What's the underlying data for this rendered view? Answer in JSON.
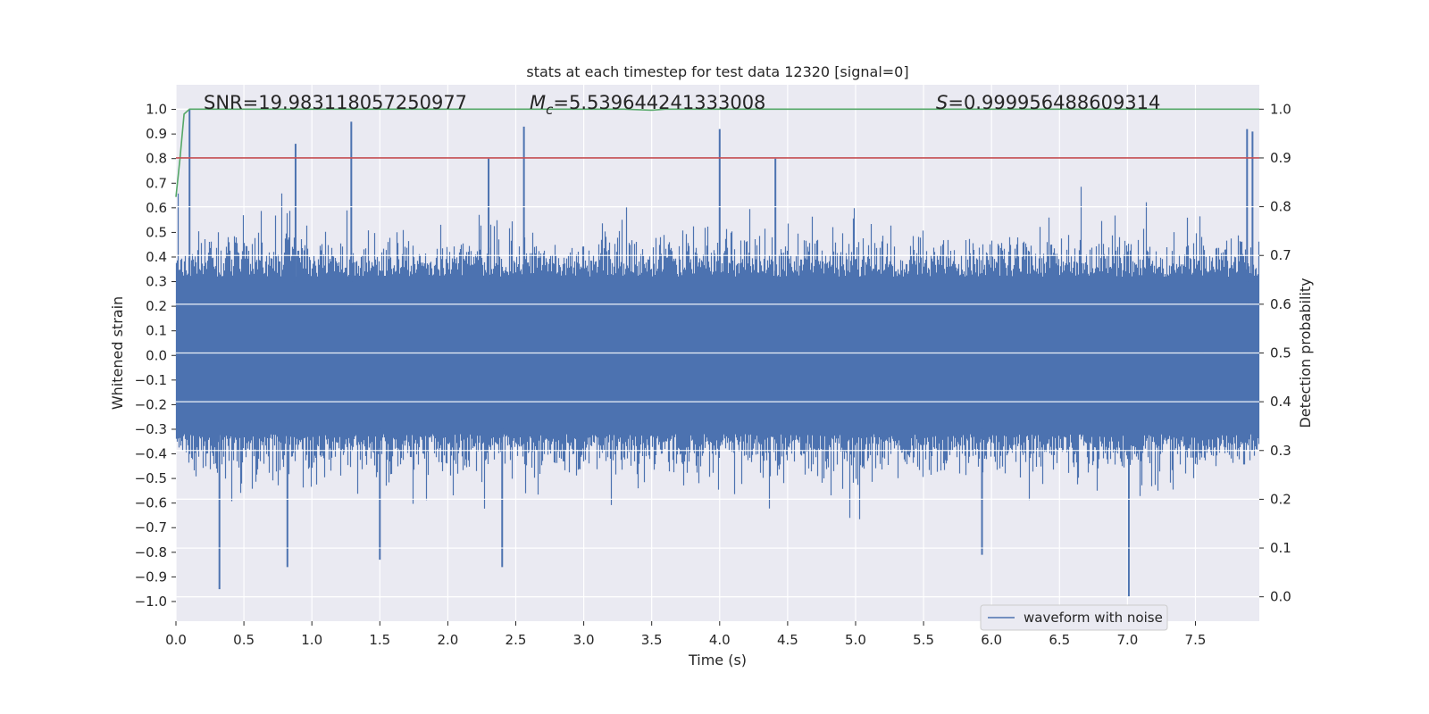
{
  "chart_data": {
    "type": "line",
    "title": "stats at each timestep for test data 12320 [signal=0]",
    "xlabel": "Time (s)",
    "ylabel": "Whitened strain",
    "ylabel_right": "Detection probability",
    "xlim": [
      0.0,
      7.97
    ],
    "ylim": [
      -1.08,
      1.1
    ],
    "ylim_right": [
      -0.05,
      1.05
    ],
    "xticks": [
      0.0,
      0.5,
      1.0,
      1.5,
      2.0,
      2.5,
      3.0,
      3.5,
      4.0,
      4.5,
      5.0,
      5.5,
      6.0,
      6.5,
      7.0,
      7.5
    ],
    "xtick_labels": [
      "0.0",
      "0.5",
      "1.0",
      "1.5",
      "2.0",
      "2.5",
      "3.0",
      "3.5",
      "4.0",
      "4.5",
      "5.0",
      "5.5",
      "6.0",
      "6.5",
      "7.0",
      "7.5"
    ],
    "yticks": [
      1.0,
      0.9,
      0.8,
      0.7,
      0.6,
      0.5,
      0.4,
      0.3,
      0.2,
      0.1,
      0.0,
      -0.1,
      -0.2,
      -0.3,
      -0.4,
      -0.5,
      -0.6,
      -0.7,
      -0.8,
      -0.9,
      -1.0
    ],
    "ytick_labels": [
      "1.0",
      "0.9",
      "0.8",
      "0.7",
      "0.6",
      "0.5",
      "0.4",
      "0.3",
      "0.2",
      "0.1",
      "0.0",
      "−0.1",
      "−0.2",
      "−0.3",
      "−0.4",
      "−0.5",
      "−0.6",
      "−0.7",
      "−0.8",
      "−0.9",
      "−1.0"
    ],
    "yticks_right": [
      1.0,
      0.9,
      0.8,
      0.7,
      0.6,
      0.5,
      0.4,
      0.3,
      0.2,
      0.1,
      0.0
    ],
    "ytick_labels_right": [
      "1.0",
      "0.9",
      "0.8",
      "0.7",
      "0.6",
      "0.5",
      "0.4",
      "0.3",
      "0.2",
      "0.1",
      "0.0"
    ],
    "grid": true,
    "legend_placement": "lower-right",
    "annotations": {
      "snr": "SNR=19.983118057250977",
      "mc_prefix": "M",
      "mc_sub": "c",
      "mc_value": "=5.539644241333008",
      "s_prefix": "S",
      "s_value": "=0.999956488609314"
    },
    "series": [
      {
        "name": "waveform with noise",
        "axis": "left",
        "color": "#4c72b0",
        "kind": "noise",
        "sample_rate": 2048,
        "envelope_positive": 0.62,
        "envelope_negative": -0.62,
        "peaks": [
          {
            "x": 0.1,
            "y": 1.0
          },
          {
            "x": 0.88,
            "y": 0.86
          },
          {
            "x": 1.29,
            "y": 0.95
          },
          {
            "x": 2.56,
            "y": 0.93
          },
          {
            "x": 4.0,
            "y": 0.92
          },
          {
            "x": 2.3,
            "y": 0.8
          },
          {
            "x": 7.88,
            "y": 0.92
          },
          {
            "x": 7.92,
            "y": 0.91
          },
          {
            "x": 4.41,
            "y": 0.8
          },
          {
            "x": 0.32,
            "y": -0.95
          },
          {
            "x": 7.01,
            "y": -0.98
          },
          {
            "x": 0.82,
            "y": -0.86
          },
          {
            "x": 2.4,
            "y": -0.86
          },
          {
            "x": 1.5,
            "y": -0.83
          },
          {
            "x": 5.93,
            "y": -0.81
          }
        ]
      },
      {
        "name": "",
        "axis": "right",
        "color": "#55a868",
        "kind": "line",
        "x": [
          0.0,
          0.03,
          0.06,
          0.1,
          0.5,
          1.0,
          2.0,
          3.0,
          3.3,
          3.5,
          3.6,
          4.0,
          5.0,
          6.0,
          7.0,
          7.97
        ],
        "y": [
          0.82,
          0.9,
          0.99,
          1.0,
          1.0,
          1.0,
          1.0,
          1.0,
          1.0,
          0.998,
          1.0,
          1.0,
          1.0,
          1.0,
          1.0,
          1.0
        ]
      },
      {
        "name": "",
        "axis": "right",
        "color": "#c44e52",
        "kind": "hline",
        "y": 0.9
      }
    ]
  }
}
